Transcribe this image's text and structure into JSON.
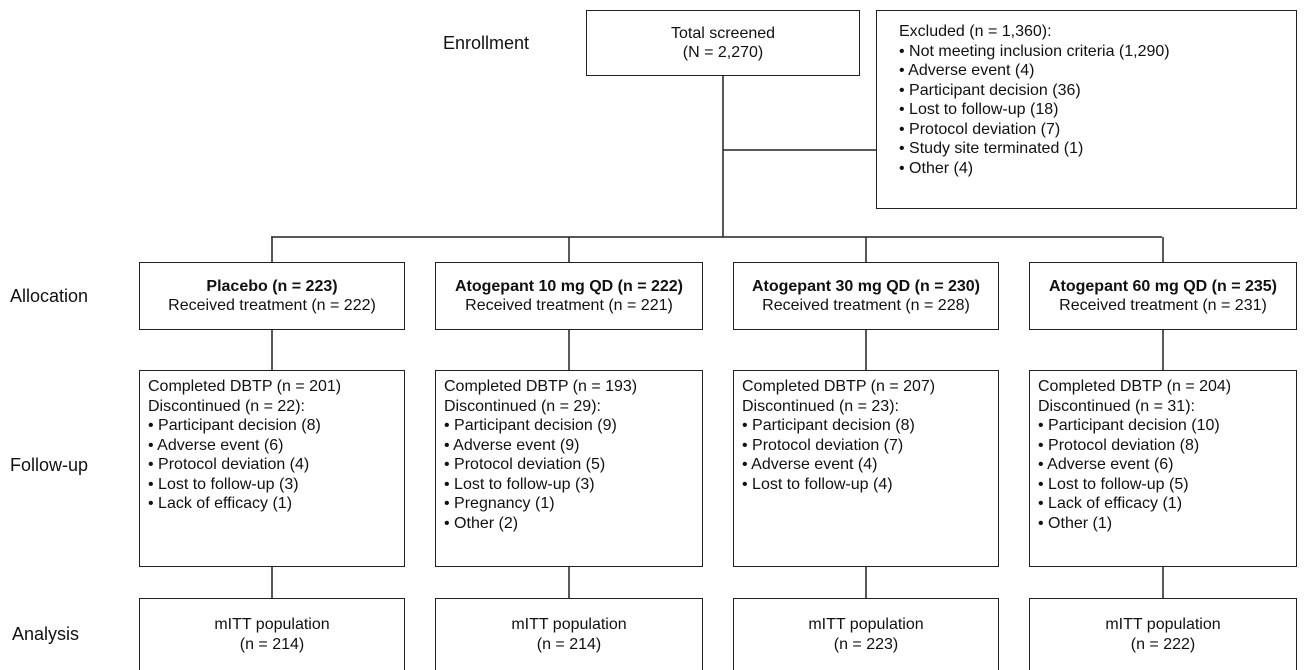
{
  "stages": [
    "Enrollment",
    "Allocation",
    "Follow-up",
    "Analysis"
  ],
  "enrollment": {
    "title": "Total screened",
    "count": "(N = 2,270)"
  },
  "excluded": {
    "title": "Excluded (n = 1,360):",
    "items": [
      "• Not meeting inclusion criteria (1,290)",
      "• Adverse event (4)",
      "• Participant decision (36)",
      "• Lost to follow-up (18)",
      "• Protocol deviation (7)",
      "• Study site terminated (1)",
      "• Other (4)"
    ]
  },
  "arms": [
    {
      "allocation": {
        "title": "Placebo (n = 223)",
        "received": "Received treatment (n = 222)"
      },
      "follow_up": {
        "completed": "Completed DBTP (n = 201)",
        "discontinued": "Discontinued (n = 22):",
        "items": [
          "• Participant decision (8)",
          "• Adverse event (6)",
          "• Protocol deviation (4)",
          "• Lost to follow-up (3)",
          "• Lack of efficacy (1)"
        ]
      },
      "analysis": {
        "title": "mITT population",
        "count": "(n = 214)"
      }
    },
    {
      "allocation": {
        "title": "Atogepant 10 mg QD (n = 222)",
        "received": "Received treatment (n = 221)"
      },
      "follow_up": {
        "completed": "Completed DBTP (n = 193)",
        "discontinued": "Discontinued (n = 29):",
        "items": [
          "• Participant decision (9)",
          "• Adverse event (9)",
          "• Protocol deviation (5)",
          "• Lost to follow-up (3)",
          "• Pregnancy (1)",
          "• Other (2)"
        ]
      },
      "analysis": {
        "title": "mITT population",
        "count": "(n = 214)"
      }
    },
    {
      "allocation": {
        "title": "Atogepant 30 mg QD (n = 230)",
        "received": "Received treatment (n = 228)"
      },
      "follow_up": {
        "completed": "Completed DBTP (n = 207)",
        "discontinued": "Discontinued (n = 23):",
        "items": [
          "• Participant decision (8)",
          "• Protocol deviation (7)",
          "• Adverse event (4)",
          "• Lost to follow-up (4)"
        ]
      },
      "analysis": {
        "title": "mITT population",
        "count": "(n = 223)"
      }
    },
    {
      "allocation": {
        "title": "Atogepant 60 mg QD (n = 235)",
        "received": "Received treatment (n = 231)"
      },
      "follow_up": {
        "completed": "Completed DBTP (n = 204)",
        "discontinued": "Discontinued (n = 31):",
        "items": [
          "• Participant decision (10)",
          "• Protocol deviation (8)",
          "• Adverse event (6)",
          "• Lost to follow-up (5)",
          "• Lack of efficacy (1)",
          "• Other (1)"
        ]
      },
      "analysis": {
        "title": "mITT population",
        "count": "(n = 222)"
      }
    }
  ]
}
